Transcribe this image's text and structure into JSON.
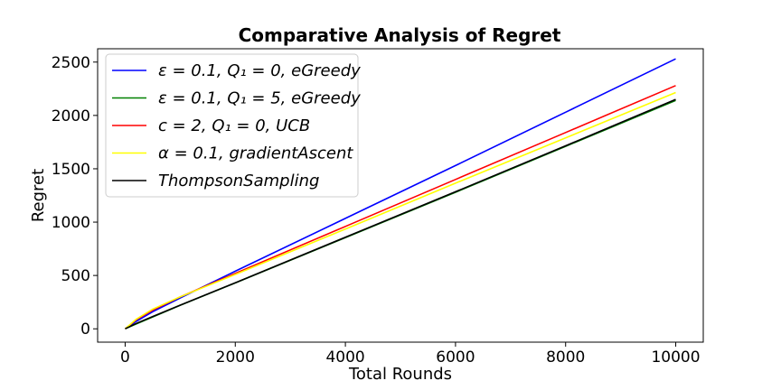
{
  "chart_data": {
    "type": "line",
    "title": "Comparative Analysis of Regret",
    "xlabel": "Total Rounds",
    "ylabel": "Regret",
    "xlim": [
      -500,
      10500
    ],
    "ylim": [
      -125,
      2625
    ],
    "xticks": [
      0,
      2000,
      4000,
      6000,
      8000,
      10000
    ],
    "yticks": [
      0,
      500,
      1000,
      1500,
      2000,
      2500
    ],
    "grid": false,
    "legend_position": "upper-left",
    "series": [
      {
        "name": "ε = 0.1, Q₁ = 0, eGreedy",
        "color": "#0000ff",
        "points": [
          [
            0,
            0
          ],
          [
            200,
            70
          ],
          [
            500,
            160
          ],
          [
            1000,
            290
          ],
          [
            2000,
            540
          ],
          [
            4000,
            1035
          ],
          [
            6000,
            1530
          ],
          [
            8000,
            2030
          ],
          [
            10000,
            2530
          ]
        ]
      },
      {
        "name": "ε = 0.1, Q₁ = 5, eGreedy",
        "color": "#008000",
        "points": [
          [
            0,
            0
          ],
          [
            200,
            45
          ],
          [
            500,
            110
          ],
          [
            1000,
            220
          ],
          [
            2000,
            430
          ],
          [
            4000,
            855
          ],
          [
            6000,
            1280
          ],
          [
            8000,
            1710
          ],
          [
            10000,
            2140
          ]
        ]
      },
      {
        "name": "c = 2, Q₁ = 0, UCB",
        "color": "#ff0000",
        "points": [
          [
            0,
            0
          ],
          [
            200,
            85
          ],
          [
            500,
            175
          ],
          [
            1000,
            300
          ],
          [
            2000,
            520
          ],
          [
            4000,
            960
          ],
          [
            6000,
            1400
          ],
          [
            8000,
            1840
          ],
          [
            10000,
            2280
          ]
        ]
      },
      {
        "name": "α = 0.1, gradientAscent",
        "color": "#ffff00",
        "points": [
          [
            0,
            0
          ],
          [
            200,
            90
          ],
          [
            500,
            185
          ],
          [
            1000,
            300
          ],
          [
            2000,
            510
          ],
          [
            4000,
            935
          ],
          [
            6000,
            1365
          ],
          [
            8000,
            1790
          ],
          [
            10000,
            2215
          ]
        ]
      },
      {
        "name": "ThompsonSampling",
        "color": "#000000",
        "points": [
          [
            0,
            0
          ],
          [
            200,
            50
          ],
          [
            500,
            115
          ],
          [
            1000,
            222
          ],
          [
            2000,
            432
          ],
          [
            4000,
            858
          ],
          [
            6000,
            1285
          ],
          [
            8000,
            1715
          ],
          [
            10000,
            2150
          ]
        ]
      }
    ]
  }
}
